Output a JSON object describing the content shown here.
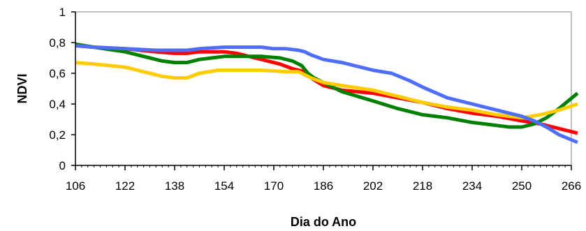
{
  "chart_data": {
    "type": "line",
    "title": "",
    "xlabel": "Dia do Ano",
    "ylabel": "NDVI",
    "xlim": [
      106,
      266
    ],
    "ylim": [
      0,
      1
    ],
    "x_ticks": [
      106,
      122,
      138,
      154,
      170,
      186,
      202,
      218,
      234,
      250,
      266
    ],
    "y_ticks": [
      0,
      0.2,
      0.4,
      0.6,
      0.8,
      1
    ],
    "y_tick_labels": [
      "0",
      "0,2",
      "0,4",
      "0,6",
      "0,8",
      "1"
    ],
    "grid": false,
    "legend": "none",
    "series": [
      {
        "color": "#ff0000",
        "x": [
          106,
          112,
          122,
          132,
          138,
          142,
          146,
          154,
          158,
          166,
          172,
          176,
          180,
          182,
          186,
          192,
          202,
          210,
          218,
          226,
          234,
          242,
          250,
          256,
          262,
          268
        ],
        "y": [
          0.78,
          0.77,
          0.76,
          0.74,
          0.73,
          0.73,
          0.74,
          0.74,
          0.73,
          0.69,
          0.66,
          0.63,
          0.61,
          0.57,
          0.52,
          0.49,
          0.47,
          0.44,
          0.41,
          0.37,
          0.34,
          0.32,
          0.29,
          0.27,
          0.24,
          0.21
        ]
      },
      {
        "color": "#008000",
        "x": [
          106,
          112,
          122,
          128,
          134,
          138,
          142,
          146,
          150,
          154,
          160,
          166,
          172,
          176,
          179,
          181,
          183,
          186,
          192,
          202,
          210,
          218,
          226,
          234,
          242,
          246,
          250,
          254,
          258,
          262,
          268
        ],
        "y": [
          0.79,
          0.77,
          0.74,
          0.71,
          0.68,
          0.67,
          0.67,
          0.69,
          0.7,
          0.71,
          0.71,
          0.71,
          0.7,
          0.68,
          0.65,
          0.6,
          0.57,
          0.54,
          0.48,
          0.42,
          0.37,
          0.33,
          0.31,
          0.28,
          0.26,
          0.25,
          0.25,
          0.27,
          0.31,
          0.37,
          0.47
        ]
      },
      {
        "color": "#ffcc00",
        "x": [
          106,
          112,
          122,
          128,
          134,
          138,
          142,
          146,
          152,
          158,
          166,
          174,
          178,
          180,
          182,
          186,
          192,
          202,
          210,
          218,
          226,
          234,
          242,
          250,
          256,
          262,
          268
        ],
        "y": [
          0.67,
          0.66,
          0.64,
          0.61,
          0.58,
          0.57,
          0.57,
          0.6,
          0.62,
          0.62,
          0.62,
          0.61,
          0.61,
          0.59,
          0.57,
          0.54,
          0.52,
          0.49,
          0.45,
          0.41,
          0.38,
          0.36,
          0.33,
          0.31,
          0.33,
          0.36,
          0.4
        ]
      },
      {
        "color": "#4f6ef7",
        "x": [
          106,
          112,
          122,
          132,
          138,
          142,
          146,
          154,
          160,
          166,
          170,
          174,
          178,
          180,
          182,
          186,
          192,
          202,
          208,
          214,
          218,
          226,
          234,
          242,
          250,
          254,
          258,
          262,
          268
        ],
        "y": [
          0.78,
          0.77,
          0.76,
          0.75,
          0.75,
          0.75,
          0.76,
          0.77,
          0.77,
          0.77,
          0.76,
          0.76,
          0.75,
          0.74,
          0.72,
          0.69,
          0.67,
          0.62,
          0.6,
          0.55,
          0.51,
          0.44,
          0.4,
          0.36,
          0.32,
          0.29,
          0.25,
          0.2,
          0.15
        ]
      }
    ]
  }
}
